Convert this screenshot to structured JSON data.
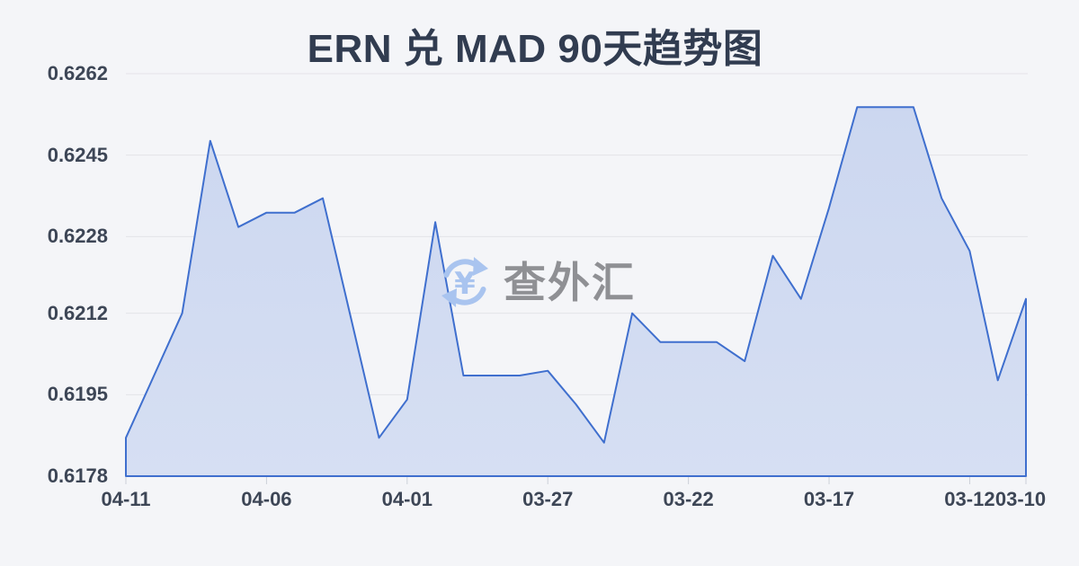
{
  "page": {
    "title": "ERN 兑 MAD 90天趋势图"
  },
  "watermark": {
    "text": "查外汇",
    "icon": "currency-exchange-refresh-icon",
    "icon_symbol": "¥"
  },
  "colors": {
    "background": "#f4f5f8",
    "line": "#3f6fce",
    "area_fill_top": "#ccd7f0",
    "area_fill_bottom": "#d6dff3",
    "grid": "#e3e4e9",
    "axis_tick": "#ccd0d8",
    "title_text": "#313c50",
    "axis_text": "#3d4656",
    "watermark_text": "#8f9094",
    "watermark_icon": "#a9c4ef"
  },
  "chart_data": {
    "type": "area",
    "title": "ERN 兑 MAD 90天趋势图",
    "xlabel": "",
    "ylabel": "",
    "grid": true,
    "legend": "none",
    "ylim": [
      0.6178,
      0.6262
    ],
    "y_ticks": [
      "0.6262",
      "0.6245",
      "0.6228",
      "0.6212",
      "0.6195",
      "0.6178"
    ],
    "x_ticks": [
      {
        "index": 0,
        "label": "04-11"
      },
      {
        "index": 5,
        "label": "04-06"
      },
      {
        "index": 10,
        "label": "04-01"
      },
      {
        "index": 15,
        "label": "03-27"
      },
      {
        "index": 20,
        "label": "03-22"
      },
      {
        "index": 25,
        "label": "03-17"
      },
      {
        "index": 30,
        "label": "03-12"
      },
      {
        "index": 32,
        "label": "03-10"
      }
    ],
    "x": [
      "04-11",
      "04-10",
      "04-09",
      "04-08",
      "04-07",
      "04-06",
      "04-05",
      "04-04",
      "04-03",
      "04-02",
      "04-01",
      "03-31",
      "03-30",
      "03-29",
      "03-28",
      "03-27",
      "03-26",
      "03-25",
      "03-24",
      "03-23",
      "03-22",
      "03-21",
      "03-20",
      "03-19",
      "03-18",
      "03-17",
      "03-16",
      "03-15",
      "03-14",
      "03-13",
      "03-12",
      "03-11",
      "03-10"
    ],
    "values": [
      0.6186,
      0.6199,
      0.6212,
      0.6248,
      0.623,
      0.6233,
      0.6233,
      0.6236,
      0.6211,
      0.6186,
      0.6194,
      0.6231,
      0.6199,
      0.6199,
      0.6199,
      0.62,
      0.6193,
      0.6185,
      0.6212,
      0.6206,
      0.6206,
      0.6206,
      0.6202,
      0.6224,
      0.6215,
      0.6234,
      0.6255,
      0.6255,
      0.6255,
      0.6236,
      0.6225,
      0.6198,
      0.6215
    ]
  }
}
